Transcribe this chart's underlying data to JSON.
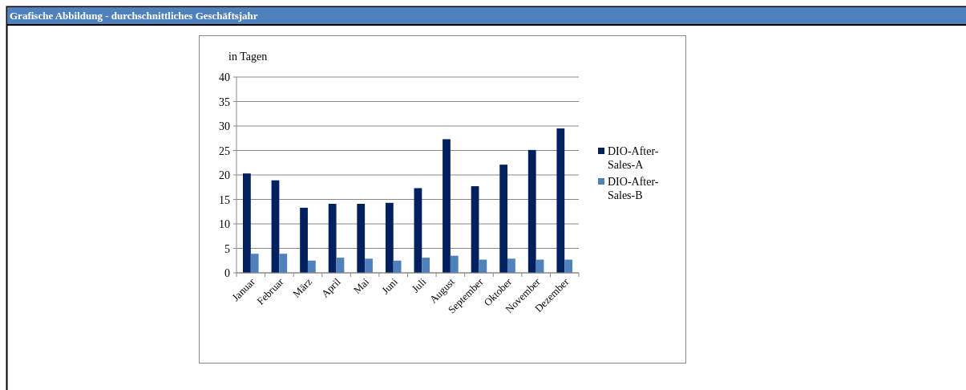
{
  "chart_data": {
    "type": "bar",
    "title": "Grafische Abbildung - durchschnittliches Geschäftsjahr",
    "ylabel": "in Tagen",
    "categories": [
      "Januar",
      "Februar",
      "März",
      "April",
      "Mai",
      "Juni",
      "Juli",
      "August",
      "September",
      "Oktober",
      "November",
      "Dezember"
    ],
    "series": [
      {
        "name": "DIO-After-Sales-A",
        "color": "#002060",
        "values": [
          20.3,
          18.9,
          13.3,
          14.1,
          14.1,
          14.3,
          17.3,
          27.3,
          17.7,
          22.1,
          25.1,
          29.5
        ]
      },
      {
        "name": "DIO-After-Sales-B",
        "color": "#4f81bd",
        "values": [
          3.9,
          3.9,
          2.5,
          3.1,
          2.9,
          2.5,
          3.1,
          3.5,
          2.7,
          2.9,
          2.7,
          2.7
        ]
      }
    ],
    "ylim": [
      0,
      40
    ],
    "yticks": [
      0,
      5,
      10,
      15,
      20,
      25,
      30,
      35,
      40
    ],
    "grid": "y",
    "legend": "right"
  }
}
